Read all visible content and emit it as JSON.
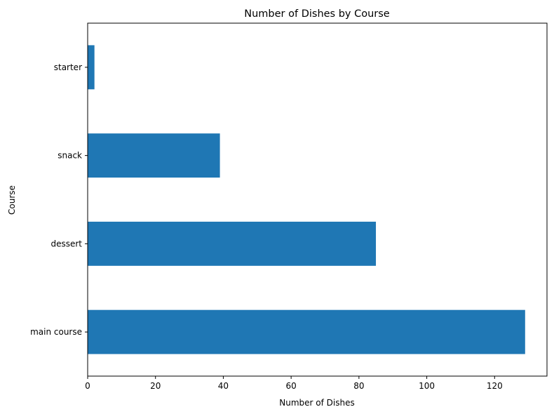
{
  "chart_data": {
    "type": "bar",
    "orientation": "horizontal",
    "title": "Number of Dishes by Course",
    "xlabel": "Number of Dishes",
    "ylabel": "Course",
    "categories": [
      "main course",
      "dessert",
      "snack",
      "starter"
    ],
    "values": [
      129,
      85,
      39,
      2
    ],
    "xlim": [
      0,
      135.45
    ],
    "xticks": [
      0,
      20,
      40,
      60,
      80,
      100,
      120
    ],
    "grid": false,
    "legend": "none",
    "bar_color": "#1f77b4"
  }
}
